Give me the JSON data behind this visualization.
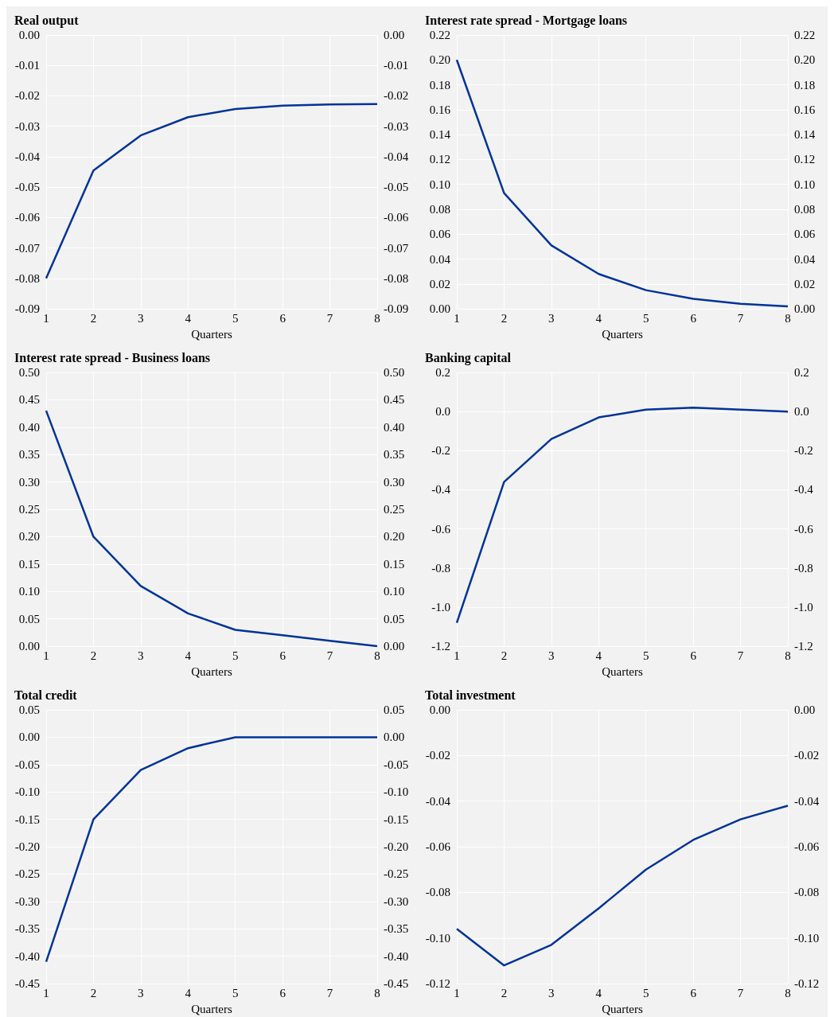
{
  "chart_data": [
    {
      "type": "line",
      "title": "Real output",
      "xlabel": "Quarters",
      "x": [
        1,
        2,
        3,
        4,
        5,
        6,
        7,
        8
      ],
      "series": [
        {
          "color": "#003399",
          "values": [
            -0.08,
            -0.0445,
            -0.033,
            -0.027,
            -0.0243,
            -0.0232,
            -0.0228,
            -0.0227
          ]
        }
      ],
      "xlim": [
        1,
        8
      ],
      "xticks": [
        1,
        2,
        3,
        4,
        5,
        6,
        7,
        8
      ],
      "ylim": [
        -0.09,
        0
      ],
      "yticks": [
        {
          "value": -0.09,
          "label": "-0.09"
        },
        {
          "value": -0.08,
          "label": "-0.08"
        },
        {
          "value": -0.07,
          "label": "-0.07"
        },
        {
          "value": -0.06,
          "label": "-0.06"
        },
        {
          "value": -0.05,
          "label": "-0.05"
        },
        {
          "value": -0.04,
          "label": "-0.04"
        },
        {
          "value": -0.03,
          "label": "-0.03"
        },
        {
          "value": -0.02,
          "label": "-0.02"
        },
        {
          "value": -0.01,
          "label": "-0.01"
        },
        {
          "value": 0,
          "label": "0.00"
        }
      ],
      "y2lim": [
        -0.09,
        0
      ],
      "y2ticks": [
        {
          "value": -0.09,
          "label": "-0.09"
        },
        {
          "value": -0.08,
          "label": "-0.08"
        },
        {
          "value": -0.07,
          "label": "-0.07"
        },
        {
          "value": -0.06,
          "label": "-0.06"
        },
        {
          "value": -0.05,
          "label": "-0.05"
        },
        {
          "value": -0.04,
          "label": "-0.04"
        },
        {
          "value": -0.03,
          "label": "-0.03"
        },
        {
          "value": -0.02,
          "label": "-0.02"
        },
        {
          "value": -0.01,
          "label": "-0.01"
        },
        {
          "value": 0,
          "label": "0.00"
        }
      ],
      "grid": true
    },
    {
      "type": "line",
      "title": "Interest rate spread - Mortgage loans",
      "xlabel": "Quarters",
      "x": [
        1,
        2,
        3,
        4,
        5,
        6,
        7,
        8
      ],
      "series": [
        {
          "color": "#003399",
          "values": [
            0.2,
            0.093,
            0.051,
            0.028,
            0.015,
            0.008,
            0.004,
            0.002
          ]
        }
      ],
      "xlim": [
        1,
        8
      ],
      "xticks": [
        1,
        2,
        3,
        4,
        5,
        6,
        7,
        8
      ],
      "ylim": [
        0,
        0.22
      ],
      "yticks": [
        {
          "value": 0,
          "label": "0.00"
        },
        {
          "value": 0.02,
          "label": "0.02"
        },
        {
          "value": 0.04,
          "label": "0.04"
        },
        {
          "value": 0.06,
          "label": "0.06"
        },
        {
          "value": 0.08,
          "label": "0.08"
        },
        {
          "value": 0.1,
          "label": "0.10"
        },
        {
          "value": 0.12,
          "label": "0.12"
        },
        {
          "value": 0.14,
          "label": "0.14"
        },
        {
          "value": 0.16,
          "label": "0.16"
        },
        {
          "value": 0.18,
          "label": "0.18"
        },
        {
          "value": 0.2,
          "label": "0.20"
        },
        {
          "value": 0.22,
          "label": "0.22"
        }
      ],
      "y2lim": [
        0,
        0.22
      ],
      "y2ticks": [
        {
          "value": 0,
          "label": "0.00"
        },
        {
          "value": 0.02,
          "label": "0.02"
        },
        {
          "value": 0.04,
          "label": "0.04"
        },
        {
          "value": 0.06,
          "label": "0.06"
        },
        {
          "value": 0.08,
          "label": "0.08"
        },
        {
          "value": 0.1,
          "label": "0.10"
        },
        {
          "value": 0.12,
          "label": "0.12"
        },
        {
          "value": 0.14,
          "label": "0.14"
        },
        {
          "value": 0.16,
          "label": "0.16"
        },
        {
          "value": 0.18,
          "label": "0.18"
        },
        {
          "value": 0.2,
          "label": "0.20"
        },
        {
          "value": 0.22,
          "label": "0.22"
        }
      ],
      "grid": true
    },
    {
      "type": "line",
      "title": "Interest rate spread - Business loans",
      "xlabel": "Quarters",
      "x": [
        1,
        2,
        3,
        4,
        5,
        6,
        7,
        8
      ],
      "series": [
        {
          "color": "#003399",
          "values": [
            0.43,
            0.2,
            0.11,
            0.06,
            0.03,
            0.02,
            0.01,
            0
          ]
        }
      ],
      "xlim": [
        1,
        8
      ],
      "xticks": [
        1,
        2,
        3,
        4,
        5,
        6,
        7,
        8
      ],
      "ylim": [
        0,
        0.5
      ],
      "yticks": [
        {
          "value": 0,
          "label": "0.00"
        },
        {
          "value": 0.05,
          "label": "0.05"
        },
        {
          "value": 0.1,
          "label": "0.10"
        },
        {
          "value": 0.15,
          "label": "0.15"
        },
        {
          "value": 0.2,
          "label": "0.20"
        },
        {
          "value": 0.25,
          "label": "0.25"
        },
        {
          "value": 0.3,
          "label": "0.30"
        },
        {
          "value": 0.35,
          "label": "0.35"
        },
        {
          "value": 0.4,
          "label": "0.40"
        },
        {
          "value": 0.45,
          "label": "0.45"
        },
        {
          "value": 0.5,
          "label": "0.50"
        }
      ],
      "y2lim": [
        0,
        0.5
      ],
      "y2ticks": [
        {
          "value": 0,
          "label": "0.00"
        },
        {
          "value": 0.05,
          "label": "0.05"
        },
        {
          "value": 0.1,
          "label": "0.10"
        },
        {
          "value": 0.15,
          "label": "0.15"
        },
        {
          "value": 0.2,
          "label": "0.20"
        },
        {
          "value": 0.25,
          "label": "0.25"
        },
        {
          "value": 0.3,
          "label": "0.30"
        },
        {
          "value": 0.35,
          "label": "0.35"
        },
        {
          "value": 0.4,
          "label": "0.40"
        },
        {
          "value": 0.45,
          "label": "0.45"
        },
        {
          "value": 0.5,
          "label": "0.50"
        }
      ],
      "grid": true
    },
    {
      "type": "line",
      "title": "Banking capital",
      "xlabel": "Quarters",
      "x": [
        1,
        2,
        3,
        4,
        5,
        6,
        7,
        8
      ],
      "series": [
        {
          "color": "#003399",
          "values": [
            -1.08,
            -0.36,
            -0.14,
            -0.03,
            0.01,
            0.02,
            0.01,
            0
          ]
        }
      ],
      "xlim": [
        1,
        8
      ],
      "xticks": [
        1,
        2,
        3,
        4,
        5,
        6,
        7,
        8
      ],
      "ylim": [
        -1.2,
        0.2
      ],
      "yticks": [
        {
          "value": -1.2,
          "label": "-1.2"
        },
        {
          "value": -1,
          "label": "-1.0"
        },
        {
          "value": -0.8,
          "label": "-0.8"
        },
        {
          "value": -0.6,
          "label": "-0.6"
        },
        {
          "value": -0.4,
          "label": "-0.4"
        },
        {
          "value": -0.2,
          "label": "-0.2"
        },
        {
          "value": 0,
          "label": "0.0"
        },
        {
          "value": 0.2,
          "label": "0.2"
        }
      ],
      "y2lim": [
        -1.2,
        0.2
      ],
      "y2ticks": [
        {
          "value": -1.2,
          "label": "-1.2"
        },
        {
          "value": -1,
          "label": "-1.0"
        },
        {
          "value": -0.8,
          "label": "-0.8"
        },
        {
          "value": -0.6,
          "label": "-0.6"
        },
        {
          "value": -0.4,
          "label": "-0.4"
        },
        {
          "value": -0.2,
          "label": "-0.2"
        },
        {
          "value": 0,
          "label": "0.0"
        },
        {
          "value": 0.2,
          "label": "0.2"
        }
      ],
      "grid": true
    },
    {
      "type": "line",
      "title": "Total credit",
      "xlabel": "Quarters",
      "x": [
        1,
        2,
        3,
        4,
        5,
        6,
        7,
        8
      ],
      "series": [
        {
          "color": "#003399",
          "values": [
            -0.41,
            -0.15,
            -0.06,
            -0.02,
            0,
            0,
            0,
            0
          ]
        }
      ],
      "xlim": [
        1,
        8
      ],
      "xticks": [
        1,
        2,
        3,
        4,
        5,
        6,
        7,
        8
      ],
      "ylim": [
        -0.45,
        0.05
      ],
      "yticks": [
        {
          "value": -0.45,
          "label": "-0.45"
        },
        {
          "value": -0.4,
          "label": "-0.40"
        },
        {
          "value": -0.35,
          "label": "-0.35"
        },
        {
          "value": -0.3,
          "label": "-0.30"
        },
        {
          "value": -0.25,
          "label": "-0.25"
        },
        {
          "value": -0.2,
          "label": "-0.20"
        },
        {
          "value": -0.15,
          "label": "-0.15"
        },
        {
          "value": -0.1,
          "label": "-0.10"
        },
        {
          "value": -0.05,
          "label": "-0.05"
        },
        {
          "value": 0,
          "label": "0.00"
        },
        {
          "value": 0.05,
          "label": "0.05"
        }
      ],
      "y2lim": [
        -0.45,
        0.05
      ],
      "y2ticks": [
        {
          "value": -0.45,
          "label": "-0.45"
        },
        {
          "value": -0.4,
          "label": "-0.40"
        },
        {
          "value": -0.35,
          "label": "-0.35"
        },
        {
          "value": -0.3,
          "label": "-0.30"
        },
        {
          "value": -0.25,
          "label": "-0.25"
        },
        {
          "value": -0.2,
          "label": "-0.20"
        },
        {
          "value": -0.15,
          "label": "-0.15"
        },
        {
          "value": -0.1,
          "label": "-0.10"
        },
        {
          "value": -0.05,
          "label": "-0.05"
        },
        {
          "value": 0,
          "label": "0.00"
        },
        {
          "value": 0.05,
          "label": "0.05"
        }
      ],
      "grid": true
    },
    {
      "type": "line",
      "title": "Total investment",
      "xlabel": "Quarters",
      "x": [
        1,
        2,
        3,
        4,
        5,
        6,
        7,
        8
      ],
      "series": [
        {
          "color": "#003399",
          "values": [
            -0.096,
            -0.112,
            -0.103,
            -0.087,
            -0.07,
            -0.057,
            -0.048,
            -0.042
          ]
        }
      ],
      "xlim": [
        1,
        8
      ],
      "xticks": [
        1,
        2,
        3,
        4,
        5,
        6,
        7,
        8
      ],
      "ylim": [
        -0.12,
        0
      ],
      "yticks": [
        {
          "value": -0.12,
          "label": "-0.12"
        },
        {
          "value": -0.1,
          "label": "-0.10"
        },
        {
          "value": -0.08,
          "label": "-0.08"
        },
        {
          "value": -0.06,
          "label": "-0.06"
        },
        {
          "value": -0.04,
          "label": "-0.04"
        },
        {
          "value": -0.02,
          "label": "-0.02"
        },
        {
          "value": 0,
          "label": "0.00"
        }
      ],
      "y2lim": [
        -0.12,
        0
      ],
      "y2ticks": [
        {
          "value": -0.12,
          "label": "-0.12"
        },
        {
          "value": -0.1,
          "label": "-0.10"
        },
        {
          "value": -0.08,
          "label": "-0.08"
        },
        {
          "value": -0.06,
          "label": "-0.06"
        },
        {
          "value": -0.04,
          "label": "-0.04"
        },
        {
          "value": -0.02,
          "label": "-0.02"
        },
        {
          "value": 0,
          "label": "0.00"
        }
      ],
      "grid": true
    }
  ]
}
